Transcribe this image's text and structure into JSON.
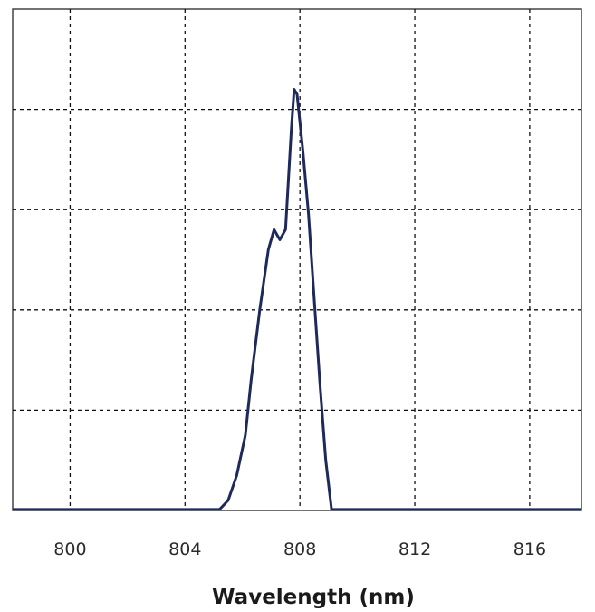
{
  "chart_data": {
    "type": "line",
    "title": "",
    "xlabel": "Wavelength (nm)",
    "ylabel": "",
    "xlim": [
      798,
      817.8
    ],
    "ylim": [
      0,
      1.0
    ],
    "x_ticks": [
      800,
      804,
      808,
      812,
      816
    ],
    "x_tick_labels": [
      "800",
      "804",
      "808",
      "812",
      "816"
    ],
    "y_gridlines": [
      0.2,
      0.4,
      0.6,
      0.8
    ],
    "grid": true,
    "grid_style": "dashed",
    "line_color": "#1f2a5c",
    "series": [
      {
        "name": "",
        "x": [
          798.0,
          800.0,
          802.0,
          804.0,
          805.2,
          805.5,
          805.8,
          806.1,
          806.3,
          806.6,
          806.9,
          807.1,
          807.3,
          807.5,
          807.7,
          807.8,
          807.9,
          808.1,
          808.3,
          808.5,
          808.7,
          808.9,
          809.1,
          809.4,
          810.0,
          812.0,
          814.0,
          816.0,
          817.8
        ],
        "y": [
          0.002,
          0.002,
          0.002,
          0.002,
          0.002,
          0.02,
          0.07,
          0.15,
          0.26,
          0.4,
          0.52,
          0.56,
          0.54,
          0.56,
          0.76,
          0.84,
          0.83,
          0.72,
          0.59,
          0.42,
          0.25,
          0.1,
          0.002,
          0.002,
          0.002,
          0.002,
          0.002,
          0.002,
          0.002
        ]
      }
    ]
  }
}
